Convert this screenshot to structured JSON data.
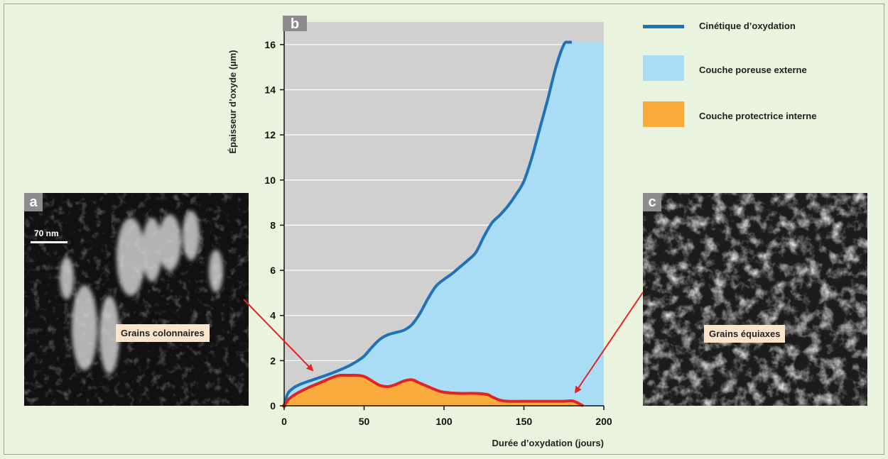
{
  "panels": {
    "a": {
      "letter": "a",
      "label": "Grains colonnaires",
      "scale_bar": "70 nm"
    },
    "b": {
      "letter": "b"
    },
    "c": {
      "letter": "c",
      "label": "Grains équiaxes"
    }
  },
  "legend": [
    {
      "label": "Cinétique d’oxydation",
      "kind": "line",
      "color": "#1f72b8"
    },
    {
      "label": "Couche poreuse externe",
      "kind": "area",
      "color": "#a9dcf5"
    },
    {
      "label": "Couche protectrice interne",
      "kind": "area",
      "color": "#f9ac3d"
    }
  ],
  "chart_data": {
    "type": "area",
    "xlabel": "Durée d’oxydation (jours)",
    "ylabel": "Épaisseur d’oxyde (µm)",
    "xlim": [
      0,
      200
    ],
    "ylim": [
      0,
      17
    ],
    "xticks": [
      0,
      50,
      100,
      150,
      200
    ],
    "yticks": [
      0,
      2,
      4,
      6,
      8,
      10,
      12,
      14,
      16
    ],
    "grid": "horizontal",
    "background_color": "#d0d0d0",
    "series": [
      {
        "name": "Cinétique d’oxydation",
        "type": "line",
        "color": "#1f72b8",
        "x": [
          0,
          2,
          5,
          10,
          20,
          30,
          40,
          45,
          50,
          55,
          60,
          65,
          70,
          75,
          80,
          85,
          90,
          95,
          100,
          105,
          110,
          115,
          120,
          125,
          130,
          135,
          140,
          145,
          150,
          155,
          160,
          165,
          170,
          175,
          178,
          180
        ],
        "y": [
          0,
          0.5,
          0.75,
          0.95,
          1.2,
          1.45,
          1.75,
          1.95,
          2.2,
          2.6,
          2.95,
          3.15,
          3.25,
          3.35,
          3.6,
          4.1,
          4.75,
          5.3,
          5.6,
          5.85,
          6.15,
          6.45,
          6.8,
          7.5,
          8.1,
          8.45,
          8.85,
          9.35,
          9.95,
          11.0,
          12.3,
          13.6,
          15.0,
          16.0,
          16.1,
          16.1
        ]
      },
      {
        "name": "Couche poreuse externe",
        "type": "area",
        "color": "#a9dcf5",
        "note_fill_to": 200
      },
      {
        "name": "Couche protectrice interne",
        "type": "area",
        "color": "#f9ac3d",
        "x": [
          0,
          3,
          8,
          15,
          20,
          25,
          30,
          35,
          40,
          45,
          50,
          55,
          60,
          65,
          70,
          75,
          80,
          85,
          90,
          95,
          100,
          110,
          120,
          127,
          130,
          135,
          140,
          150,
          160,
          170,
          175,
          180,
          183,
          187
        ],
        "y": [
          0,
          0.3,
          0.55,
          0.8,
          0.95,
          1.1,
          1.25,
          1.35,
          1.35,
          1.35,
          1.3,
          1.1,
          0.9,
          0.85,
          0.95,
          1.1,
          1.15,
          1.0,
          0.85,
          0.7,
          0.6,
          0.55,
          0.55,
          0.5,
          0.4,
          0.25,
          0.2,
          0.2,
          0.2,
          0.2,
          0.2,
          0.22,
          0.15,
          0
        ]
      }
    ]
  }
}
